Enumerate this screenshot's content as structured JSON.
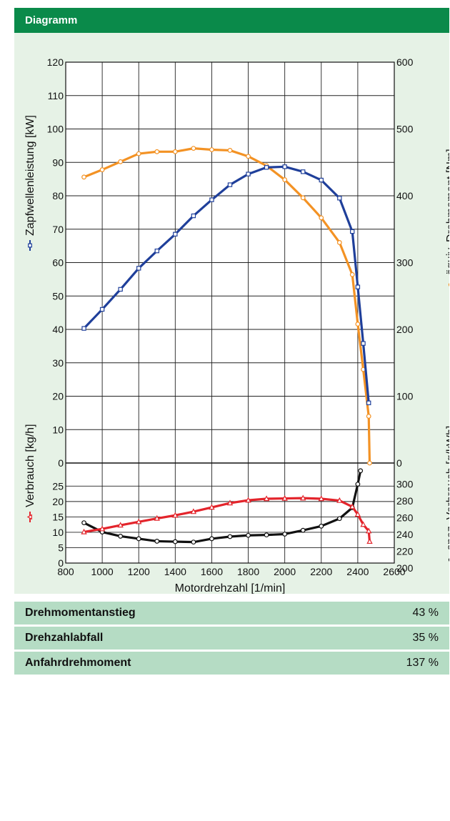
{
  "header": {
    "title": "Diagramm"
  },
  "chart_data": [
    {
      "type": "line",
      "xlabel": "",
      "ylabel": "Zapfwellenleistung [kW]",
      "ylabel_right": "äquiv. Drehmoment [Nm]",
      "xlim": [
        800,
        2600
      ],
      "ylim": [
        0,
        120
      ],
      "ylim_right": [
        0,
        600
      ],
      "y_ticks": [
        0,
        10,
        20,
        30,
        40,
        50,
        60,
        70,
        80,
        90,
        100,
        110,
        120
      ],
      "y_ticks_right": [
        0,
        100,
        200,
        300,
        400,
        500,
        600
      ],
      "series": [
        {
          "name": "Zapfwellenleistung [kW]",
          "axis": "left",
          "color": "#1f3f9a",
          "marker": "square",
          "points": [
            [
              900,
              40.3
            ],
            [
              1000,
              46
            ],
            [
              1100,
              52
            ],
            [
              1200,
              58.3
            ],
            [
              1300,
              63.5
            ],
            [
              1400,
              68.5
            ],
            [
              1500,
              74
            ],
            [
              1600,
              78.8
            ],
            [
              1700,
              83.3
            ],
            [
              1800,
              86.5
            ],
            [
              1900,
              88.5
            ],
            [
              2000,
              88.7
            ],
            [
              2100,
              87.2
            ],
            [
              2200,
              84.7
            ],
            [
              2300,
              79.3
            ],
            [
              2370,
              69.3
            ],
            [
              2400,
              52.7
            ],
            [
              2430,
              35.8
            ],
            [
              2460,
              18
            ]
          ]
        },
        {
          "name": "äquiv. Drehmoment [Nm]",
          "axis": "right",
          "color": "#f39224",
          "marker": "circle",
          "points": [
            [
              900,
              428
            ],
            [
              1000,
              439
            ],
            [
              1100,
              451
            ],
            [
              1200,
              463
            ],
            [
              1300,
              466
            ],
            [
              1400,
              466
            ],
            [
              1500,
              471
            ],
            [
              1600,
              469
            ],
            [
              1700,
              468
            ],
            [
              1800,
              459
            ],
            [
              1900,
              445
            ],
            [
              2000,
              424
            ],
            [
              2100,
              397
            ],
            [
              2200,
              367
            ],
            [
              2300,
              330
            ],
            [
              2370,
              282
            ],
            [
              2400,
              208
            ],
            [
              2430,
              140
            ],
            [
              2460,
              70
            ],
            [
              2465,
              0
            ]
          ]
        }
      ]
    },
    {
      "type": "line",
      "xlabel": "Motordrehzahl [1/min]",
      "ylabel": "Verbrauch [kg/h]",
      "ylabel_right": "spez. Verbrauch [g/kWh]",
      "xlim": [
        800,
        2600
      ],
      "ylim": [
        0,
        30
      ],
      "ylim_right": [
        200,
        310
      ],
      "x_ticks": [
        800,
        1000,
        1200,
        1400,
        1600,
        1800,
        2000,
        2200,
        2400,
        2600
      ],
      "y_ticks": [
        0,
        5,
        10,
        15,
        20,
        25
      ],
      "y_ticks_right": [
        200,
        220,
        240,
        260,
        280,
        300
      ],
      "series": [
        {
          "name": "Verbrauch [kg/h]",
          "axis": "left",
          "color": "#e3242b",
          "marker": "triangle",
          "points": [
            [
              900,
              10.1
            ],
            [
              1000,
              11.1
            ],
            [
              1100,
              12.3
            ],
            [
              1200,
              13.4
            ],
            [
              1300,
              14.5
            ],
            [
              1400,
              15.5
            ],
            [
              1500,
              16.7
            ],
            [
              1600,
              18.1
            ],
            [
              1700,
              19.5
            ],
            [
              1800,
              20.4
            ],
            [
              1900,
              20.9
            ],
            [
              2000,
              21
            ],
            [
              2100,
              21.1
            ],
            [
              2200,
              20.9
            ],
            [
              2300,
              20.3
            ],
            [
              2370,
              18.3
            ],
            [
              2400,
              15.8
            ],
            [
              2430,
              12.5
            ],
            [
              2460,
              10.4
            ],
            [
              2465,
              7
            ]
          ]
        },
        {
          "name": "spez. Verbrauch [g/kWh]",
          "axis": "right",
          "color": "#111111",
          "marker": "circle",
          "points": [
            [
              900,
              248
            ],
            [
              1000,
              237
            ],
            [
              1100,
              232
            ],
            [
              1200,
              229
            ],
            [
              1300,
              226
            ],
            [
              1400,
              225.5
            ],
            [
              1500,
              225
            ],
            [
              1600,
              229
            ],
            [
              1700,
              231.5
            ],
            [
              1800,
              233
            ],
            [
              1900,
              233.5
            ],
            [
              2000,
              234.5
            ],
            [
              2100,
              239
            ],
            [
              2200,
              244
            ],
            [
              2300,
              253
            ],
            [
              2370,
              266
            ],
            [
              2400,
              294
            ],
            [
              2415,
              310
            ]
          ]
        }
      ]
    }
  ],
  "stats": [
    {
      "label": "Drehmomentanstieg",
      "value": "43 %"
    },
    {
      "label": "Drehzahlabfall",
      "value": "35 %"
    },
    {
      "label": "Anfahrdrehmoment",
      "value": "137 %"
    }
  ]
}
